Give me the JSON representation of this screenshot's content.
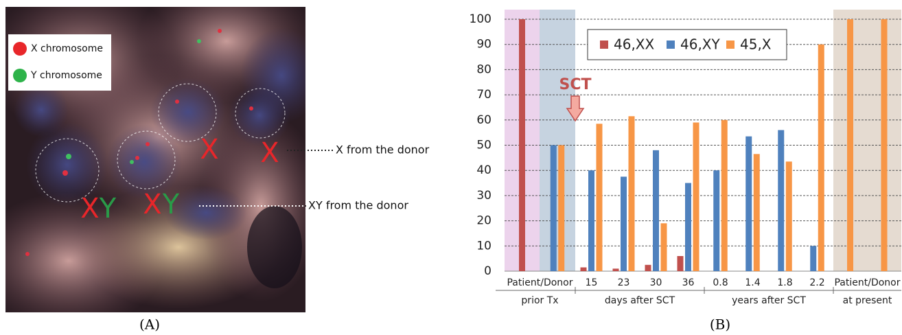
{
  "panel_a": {
    "legend": [
      {
        "label": "X chromosome",
        "color": "#e8262a"
      },
      {
        "label": "Y chromosome",
        "color": "#2eb34a"
      }
    ],
    "labels": [
      {
        "text": "X",
        "color": "#e8262a"
      },
      {
        "text": "Y",
        "color": "#2a9a48"
      },
      {
        "text": "X",
        "color": "#e8262a"
      },
      {
        "text": "Y",
        "color": "#2a9a48"
      },
      {
        "text": "X",
        "color": "#e8262a"
      },
      {
        "text": "X",
        "color": "#e8262a"
      }
    ],
    "annotations": [
      "X from the donor",
      "XY from the donor"
    ],
    "caption": "(A)"
  },
  "panel_b": {
    "caption": "(B)"
  },
  "chart_data": {
    "type": "bar",
    "categories": [
      "Patient/Donor",
      null,
      "15",
      "23",
      "30",
      "36",
      "0.8",
      "1.4",
      "1.8",
      "2.2",
      "Patient/Donor",
      null
    ],
    "groups": [
      "prior Tx",
      "prior Tx",
      "days after SCT",
      "days after SCT",
      "days after SCT",
      "days after SCT",
      "years after SCT",
      "years after SCT",
      "years after SCT",
      "years after SCT",
      "at present",
      "at present"
    ],
    "category_backgrounds": [
      "#ecd3ec",
      "#c6d3e0",
      null,
      null,
      null,
      null,
      null,
      null,
      null,
      null,
      "#e5dbd1",
      "#e5dbd1"
    ],
    "series": [
      {
        "name": "46,XX",
        "color": "#c0504d",
        "values": [
          100,
          null,
          1.5,
          1,
          2.5,
          6,
          null,
          null,
          null,
          null,
          null,
          null
        ]
      },
      {
        "name": "46,XY",
        "color": "#4f81bd",
        "values": [
          null,
          50,
          40,
          37.5,
          48,
          35,
          40,
          53.5,
          56,
          10,
          null,
          null
        ]
      },
      {
        "name": "45,X",
        "color": "#f79646",
        "values": [
          null,
          50,
          58.5,
          61.5,
          19,
          59,
          60,
          46.5,
          43.5,
          90,
          100,
          100
        ]
      }
    ],
    "ylim": [
      0,
      100
    ],
    "yticks": [
      0,
      10,
      20,
      30,
      40,
      50,
      60,
      70,
      80,
      90,
      100
    ],
    "grid": true,
    "legend_position": "top",
    "annotations": [
      {
        "text": "SCT",
        "color": "#c0504d"
      }
    ]
  }
}
